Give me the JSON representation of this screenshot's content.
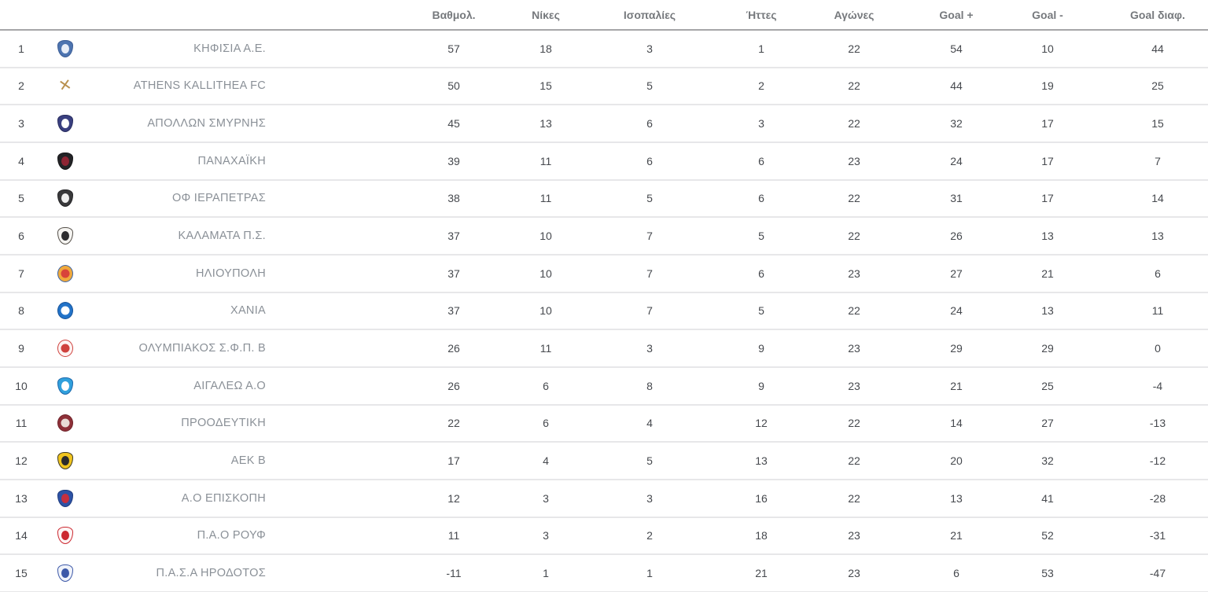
{
  "colors": {
    "background": "#ffffff",
    "header_text": "#76797d",
    "header_border": "#a6a6a8",
    "row_border": "#e7e7e9",
    "cell_text": "#46494e",
    "team_text": "#8a9097"
  },
  "table": {
    "columns": [
      {
        "key": "points",
        "label": "Βαθμολ."
      },
      {
        "key": "wins",
        "label": "Νίκες"
      },
      {
        "key": "draws",
        "label": "Ισοπαλίες"
      },
      {
        "key": "losses",
        "label": "Ήττες"
      },
      {
        "key": "games",
        "label": "Αγώνες"
      },
      {
        "key": "goals_for",
        "label": "Goal +"
      },
      {
        "key": "goals_against",
        "label": "Goal -"
      },
      {
        "key": "goal_diff",
        "label": "Goal διαφ."
      }
    ],
    "rows": [
      {
        "pos": "1",
        "team": "ΚΗΦΙΣΙΑ Α.Ε.",
        "points": "57",
        "wins": "18",
        "draws": "3",
        "losses": "1",
        "games": "22",
        "goals_for": "54",
        "goals_against": "10",
        "goal_diff": "44",
        "logo": {
          "name": "kifisia-ae-crest-icon",
          "shape": "shield",
          "color": "#4d74b0",
          "border_color": "#3c5d95",
          "inner_color": "#e8eef8"
        }
      },
      {
        "pos": "2",
        "team": "ATHENS KALLITHEA FC",
        "points": "50",
        "wins": "15",
        "draws": "5",
        "losses": "2",
        "games": "22",
        "goals_for": "44",
        "goals_against": "19",
        "goal_diff": "25",
        "logo": {
          "name": "athens-kallithea-figure-icon",
          "shape": "figure",
          "color": "#b9914f",
          "border_color": "#b9914f",
          "inner_color": "#b9914f"
        }
      },
      {
        "pos": "3",
        "team": "ΑΠΟΛΛΩΝ ΣΜΥΡΝΗΣ",
        "points": "45",
        "wins": "13",
        "draws": "6",
        "losses": "3",
        "games": "22",
        "goals_for": "32",
        "goals_against": "17",
        "goal_diff": "15",
        "logo": {
          "name": "apollon-smyrnis-crest-icon",
          "shape": "shield",
          "color": "#3a4080",
          "border_color": "#272c5e",
          "inner_color": "#ffffff"
        }
      },
      {
        "pos": "4",
        "team": "ΠΑΝΑΧΑΪΚΗ",
        "points": "39",
        "wins": "11",
        "draws": "6",
        "losses": "6",
        "games": "23",
        "goals_for": "24",
        "goals_against": "17",
        "goal_diff": "7",
        "logo": {
          "name": "panachaiki-crest-icon",
          "shape": "shield",
          "color": "#232326",
          "border_color": "#161618",
          "inner_color": "#8e2433"
        }
      },
      {
        "pos": "5",
        "team": "ΟΦ ΙΕΡΑΠΕΤΡΑΣ",
        "points": "38",
        "wins": "11",
        "draws": "5",
        "losses": "6",
        "games": "22",
        "goals_for": "31",
        "goals_against": "17",
        "goal_diff": "14",
        "logo": {
          "name": "of-ierapetras-crest-icon",
          "shape": "shield",
          "color": "#39393b",
          "border_color": "#232325",
          "inner_color": "#f0f0f0"
        }
      },
      {
        "pos": "6",
        "team": "ΚΑΛΑΜΑΤΑ Π.Σ.",
        "points": "37",
        "wins": "10",
        "draws": "7",
        "losses": "5",
        "games": "22",
        "goals_for": "26",
        "goals_against": "13",
        "goal_diff": "13",
        "logo": {
          "name": "kalamata-crest-icon",
          "shape": "shield",
          "color": "#f5f4f1",
          "border_color": "#55504a",
          "inner_color": "#2c2c2e"
        }
      },
      {
        "pos": "7",
        "team": "ΗΛΙΟΥΠΟΛΗ",
        "points": "37",
        "wins": "10",
        "draws": "7",
        "losses": "6",
        "games": "23",
        "goals_for": "27",
        "goals_against": "21",
        "goal_diff": "6",
        "logo": {
          "name": "ilioupoli-badge-icon",
          "shape": "circle",
          "color": "#f0a93c",
          "border_color": "#3a64a6",
          "inner_color": "#d8433a"
        }
      },
      {
        "pos": "8",
        "team": "ΧΑΝΙΑ",
        "points": "37",
        "wins": "10",
        "draws": "7",
        "losses": "5",
        "games": "22",
        "goals_for": "24",
        "goals_against": "13",
        "goal_diff": "11",
        "logo": {
          "name": "chania-badge-icon",
          "shape": "circle",
          "color": "#2273c8",
          "border_color": "#16539a",
          "inner_color": "#ffffff"
        }
      },
      {
        "pos": "9",
        "team": "ΟΛΥΜΠΙΑΚΟΣ Σ.Φ.Π. Β",
        "points": "26",
        "wins": "11",
        "draws": "3",
        "losses": "9",
        "games": "23",
        "goals_for": "29",
        "goals_against": "29",
        "goal_diff": "0",
        "logo": {
          "name": "olympiacos-b-badge-icon",
          "shape": "circle",
          "color": "#fdf4f3",
          "border_color": "#cf423e",
          "inner_color": "#cf423e"
        }
      },
      {
        "pos": "10",
        "team": "ΑΙΓΑΛΕΩ Α.Ο",
        "points": "26",
        "wins": "6",
        "draws": "8",
        "losses": "9",
        "games": "23",
        "goals_for": "21",
        "goals_against": "25",
        "goal_diff": "-4",
        "logo": {
          "name": "egaleo-crest-icon",
          "shape": "shield",
          "color": "#31a0dc",
          "border_color": "#1c67ab",
          "inner_color": "#ffffff"
        }
      },
      {
        "pos": "11",
        "team": "ΠΡΟΟΔΕΥΤΙΚΗ",
        "points": "22",
        "wins": "6",
        "draws": "4",
        "losses": "12",
        "games": "22",
        "goals_for": "14",
        "goals_against": "27",
        "goal_diff": "-13",
        "logo": {
          "name": "proodeftiki-badge-icon",
          "shape": "circle",
          "color": "#8e3038",
          "border_color": "#6e2229",
          "inner_color": "#e9dcd6"
        }
      },
      {
        "pos": "12",
        "team": "ΑΕΚ Β",
        "points": "17",
        "wins": "4",
        "draws": "5",
        "losses": "13",
        "games": "22",
        "goals_for": "20",
        "goals_against": "32",
        "goal_diff": "-12",
        "logo": {
          "name": "aek-b-crest-icon",
          "shape": "shield",
          "color": "#f0c41e",
          "border_color": "#3f3a22",
          "inner_color": "#2b2b2b"
        }
      },
      {
        "pos": "13",
        "team": "Α.Ο ΕΠΙΣΚΟΠΗ",
        "points": "12",
        "wins": "3",
        "draws": "3",
        "losses": "16",
        "games": "22",
        "goals_for": "13",
        "goals_against": "41",
        "goal_diff": "-28",
        "logo": {
          "name": "episkopi-crest-icon",
          "shape": "shield",
          "color": "#2d52a5",
          "border_color": "#1f3c7e",
          "inner_color": "#c62f3e"
        }
      },
      {
        "pos": "14",
        "team": "Π.Α.Ο ΡΟΥΦ",
        "points": "11",
        "wins": "3",
        "draws": "2",
        "losses": "18",
        "games": "23",
        "goals_for": "21",
        "goals_against": "52",
        "goal_diff": "-31",
        "logo": {
          "name": "pao-rouf-crest-icon",
          "shape": "shield",
          "color": "#fdf5f5",
          "border_color": "#cc2830",
          "inner_color": "#cc2830"
        }
      },
      {
        "pos": "15",
        "team": "Π.Α.Σ.Α ΗΡΟΔΟΤΟΣ",
        "points": "-11",
        "wins": "1",
        "draws": "1",
        "losses": "21",
        "games": "23",
        "goals_for": "6",
        "goals_against": "53",
        "goal_diff": "-47",
        "logo": {
          "name": "irodotos-crest-icon",
          "shape": "shield",
          "color": "#f0f3fa",
          "border_color": "#3c58a8",
          "inner_color": "#3c58a8"
        }
      }
    ]
  }
}
